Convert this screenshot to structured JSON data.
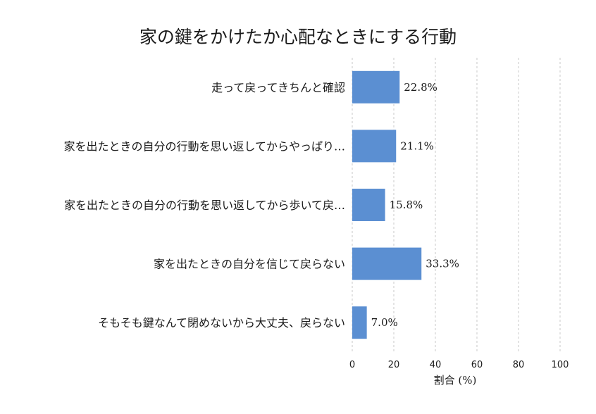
{
  "chart_data": {
    "type": "bar",
    "orientation": "horizontal",
    "title": "家の鍵をかけたか心配なときにする行動",
    "categories": [
      "走って戻ってきちんと確認",
      "家を出たときの自分の行動を思い返してからやっぱり…",
      "家を出たときの自分の行動を思い返してから歩いて戻…",
      "家を出たときの自分を信じて戻らない",
      "そもそも鍵なんて閉めないから大丈夫、戻らない"
    ],
    "values": [
      22.8,
      21.1,
      15.8,
      33.3,
      7.0
    ],
    "value_labels": [
      "22.8%",
      "21.1%",
      "15.8%",
      "33.3%",
      "7.0%"
    ],
    "xlabel": "割合 (%)",
    "ylabel": "",
    "xlim": [
      0,
      100
    ],
    "xticks": [
      "0",
      "20",
      "40",
      "60",
      "80",
      "100"
    ],
    "grid": true,
    "bar_color": "#5b8fd2"
  }
}
